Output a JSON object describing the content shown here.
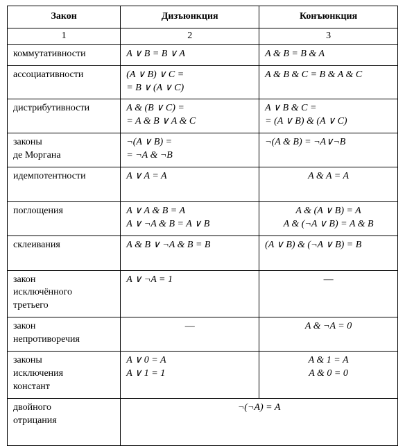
{
  "table": {
    "headers": {
      "law": "Закон",
      "disj": "Дизъюнкция",
      "conj": "Конъюнкция"
    },
    "subheaders": {
      "law": "1",
      "disj": "2",
      "conj": "3"
    },
    "rows": {
      "commut": {
        "law": "коммутативности",
        "disj": "A ∨ B = B ∨ A",
        "conj": "A & B = B & A"
      },
      "assoc": {
        "law": "ассоциативности",
        "disj": "(A ∨ B) ∨ C =\n= B ∨ (A ∨ C)",
        "conj": "A & B & C = B & A & C"
      },
      "distr": {
        "law": "дистрибутивности",
        "disj": "A & (B ∨ C) =\n= A & B ∨ A & C",
        "conj": "A ∨ B & C =\n= (A ∨ B) & (A ∨ C)"
      },
      "demorgan": {
        "law": "законы\nде Моргана",
        "disj": "¬(A ∨ B) =\n= ¬A & ¬B",
        "conj": "¬(A & B) = ¬A∨¬B"
      },
      "idemp": {
        "law": "идемпотентности",
        "disj": "A ∨ A = A",
        "conj": "A & A = A"
      },
      "absorb": {
        "law": "поглощения",
        "disj": "A ∨ A & B = A\nA ∨ ¬A & B = A ∨ B",
        "conj": "A & (A ∨ B) = A\nA & (¬A ∨ B) = A & B"
      },
      "glue": {
        "law": "склеивания",
        "disj": "A & B ∨ ¬A & B = B",
        "conj": "(A ∨ B) & (¬A ∨ B) = B"
      },
      "exclmid": {
        "law": "закон\nисключённого\nтретьего",
        "disj": "A ∨ ¬A = 1",
        "conj": "—"
      },
      "noncontr": {
        "law": "закон\nнепротиворечия",
        "disj": "—",
        "conj": "A & ¬A = 0"
      },
      "consts": {
        "law": "законы\nисключения\nконстант",
        "disj": "A ∨ 0 = A\nA ∨ 1 = 1",
        "conj": "A & 1 = A\nA & 0 = 0"
      },
      "dneg": {
        "law": "двойного\nотрицания",
        "merged": "¬(¬A) = A"
      }
    }
  }
}
